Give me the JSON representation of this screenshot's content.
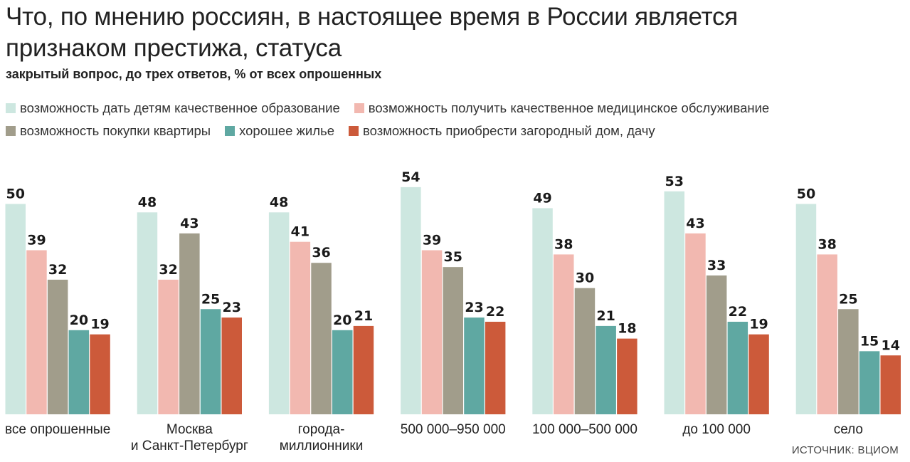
{
  "header": {
    "title": "Что, по мнению россиян, в настоящее время в России является признаком престижа, статуса",
    "subtitle": "закрытый вопрос, до трех ответов, % от всех опрошенных"
  },
  "source": "ИСТОЧНИК: ВЦИОМ",
  "chart_data": {
    "type": "bar",
    "categories": [
      "все опрошенные",
      "Москва\nи Санкт-Петербург",
      "города-\nмиллионники",
      "500 000–950 000",
      "100 000–500 000",
      "до 100 000",
      "село"
    ],
    "series": [
      {
        "name": "возможность дать детям качественное образование",
        "color": "#cde7e0",
        "values": [
          50,
          48,
          48,
          54,
          49,
          53,
          50
        ]
      },
      {
        "name": "возможность получить качественное медицинское обслуживание",
        "color": "#f2b8b0",
        "values": [
          39,
          32,
          41,
          39,
          38,
          43,
          38
        ]
      },
      {
        "name": "возможность покупки квартиры",
        "color": "#a19d8b",
        "values": [
          32,
          43,
          36,
          35,
          30,
          33,
          25
        ]
      },
      {
        "name": "хорошее жилье",
        "color": "#5fa8a2",
        "values": [
          20,
          25,
          20,
          23,
          21,
          22,
          15
        ]
      },
      {
        "name": "возможность приобрести загородный дом, дачу",
        "color": "#cc5a3a",
        "values": [
          19,
          23,
          21,
          22,
          18,
          19,
          14
        ]
      }
    ],
    "ylim": [
      0,
      54
    ],
    "grid": false,
    "legend_position": "top"
  }
}
